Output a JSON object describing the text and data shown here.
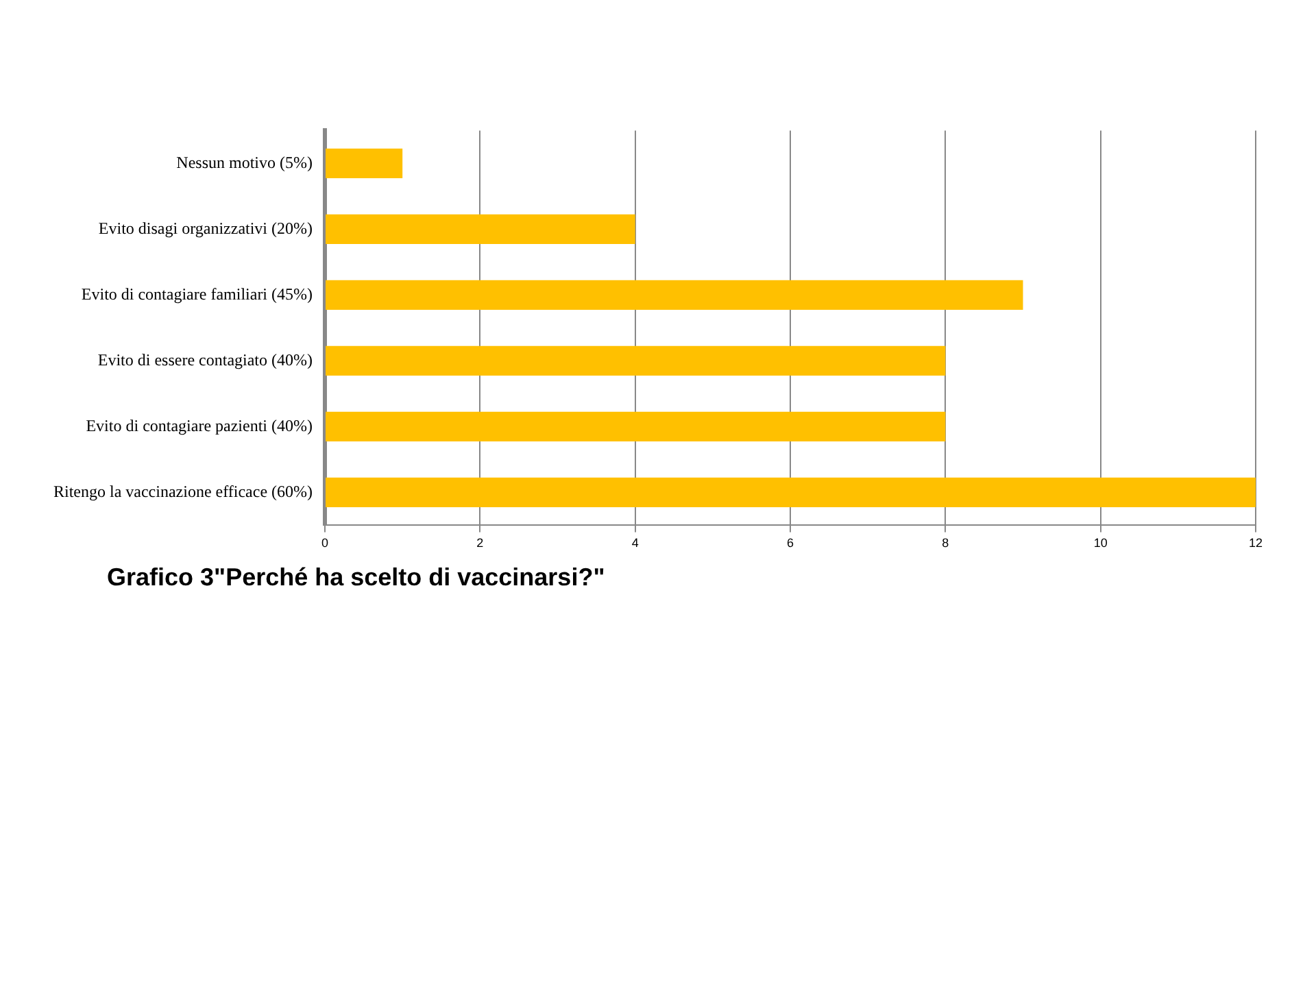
{
  "chart_data": {
    "type": "bar",
    "orientation": "horizontal",
    "title": "Grafico 3\"Perché ha scelto di vaccinarsi?\"",
    "categories": [
      "Nessun motivo (5%)",
      "Evito disagi organizzativi (20%)",
      "Evito di contagiare familiari (45%)",
      "Evito di essere contagiato (40%)",
      "Evito di contagiare pazienti (40%)",
      "Ritengo la vaccinazione efficace (60%)"
    ],
    "values": [
      1,
      4,
      9,
      8,
      8,
      12
    ],
    "color": "#ffc000",
    "xlim": [
      0,
      12
    ],
    "xticks": [
      0,
      2,
      4,
      6,
      8,
      10,
      12
    ],
    "grid": "x",
    "legend": false
  }
}
